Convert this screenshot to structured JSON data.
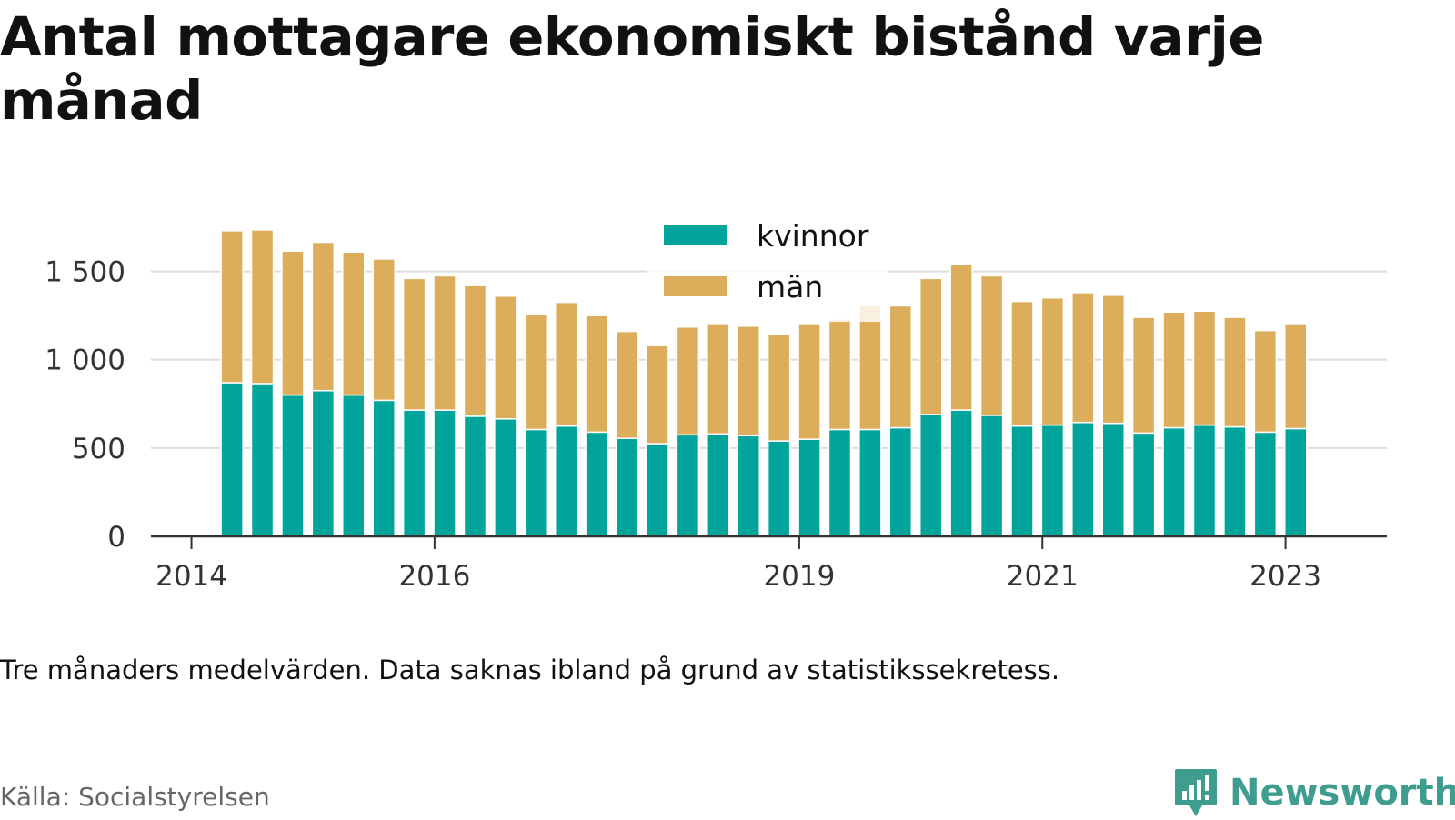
{
  "title": "Antal mottagare ekonomiskt bistånd varje månad",
  "note": "Tre månaders medelvärden. Data saknas ibland på grund av statistikssekretess.",
  "source": "Källa: Socialstyrelsen",
  "brand": {
    "name": "Newsworthy",
    "icon": "bar-chart-speech-bubble-icon",
    "color": "#3e9d8f"
  },
  "chart_data": {
    "type": "bar",
    "stacked": true,
    "x": [
      "2014-05",
      "2014-08",
      "2014-11",
      "2015-02",
      "2015-05",
      "2015-08",
      "2015-11",
      "2016-02",
      "2016-05",
      "2016-08",
      "2016-11",
      "2017-02",
      "2017-05",
      "2017-08",
      "2017-11",
      "2018-02",
      "2018-05",
      "2018-08",
      "2018-11",
      "2019-02",
      "2019-05",
      "2019-08",
      "2019-11",
      "2020-02",
      "2020-05",
      "2020-08",
      "2020-11",
      "2021-02",
      "2021-05",
      "2021-08",
      "2021-11",
      "2022-02",
      "2022-05",
      "2022-08",
      "2022-11",
      "2023-02"
    ],
    "series": [
      {
        "name": "kvinnor",
        "color": "#00a49a",
        "values": [
          870,
          865,
          800,
          825,
          800,
          770,
          715,
          715,
          680,
          665,
          605,
          625,
          590,
          555,
          525,
          575,
          580,
          570,
          540,
          550,
          605,
          605,
          615,
          690,
          715,
          685,
          625,
          630,
          645,
          640,
          585,
          615,
          630,
          620,
          590,
          610
        ]
      },
      {
        "name": "män",
        "color": "#dcae5c",
        "values": [
          860,
          870,
          815,
          840,
          810,
          800,
          745,
          760,
          740,
          695,
          655,
          700,
          660,
          605,
          555,
          610,
          625,
          620,
          605,
          655,
          625,
          700,
          690,
          770,
          825,
          790,
          705,
          720,
          735,
          725,
          655,
          655,
          645,
          620,
          575,
          595
        ]
      }
    ],
    "yticks": [
      0,
      500,
      1000,
      1500
    ],
    "ytick_labels": [
      "0",
      "500",
      "1 000",
      "1 500"
    ],
    "ylim": [
      0,
      1750
    ],
    "xticks": [
      "2014-01",
      "2016-01",
      "2019-01",
      "2021-01",
      "2023-01"
    ],
    "xtick_labels": [
      "2014",
      "2016",
      "2019",
      "2021",
      "2023"
    ],
    "xlim": [
      "2013-09",
      "2023-11"
    ],
    "grid": true,
    "legend_position": "top-center",
    "xlabel": "",
    "ylabel": ""
  }
}
